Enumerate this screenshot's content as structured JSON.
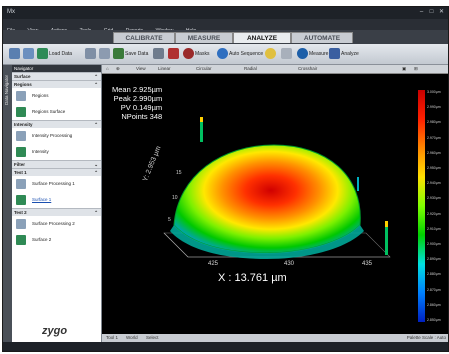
{
  "window": {
    "title": "Mx"
  },
  "menu": [
    "File",
    "View",
    "Actions",
    "Tools",
    "Grid",
    "Reports",
    "Window",
    "Help"
  ],
  "tabs": [
    {
      "label": "CALIBRATE",
      "active": false
    },
    {
      "label": "MEASURE",
      "active": false
    },
    {
      "label": "ANALYZE",
      "active": true
    },
    {
      "label": "AUTOMATE",
      "active": false
    }
  ],
  "ribbon": {
    "load_data": "Load Data",
    "save_data": "Save Data",
    "masks": "Masks",
    "auto_sequence": "Auto Sequence",
    "measure": "Measure",
    "analyze": "Analyze"
  },
  "navigator": {
    "title": "Navigator",
    "root": "Surface",
    "groups": [
      {
        "label": "Regions",
        "items": [
          "Regions",
          "Regions Surface"
        ]
      },
      {
        "label": "Intensity",
        "items": [
          "Intensity Processing",
          "Intensity"
        ]
      },
      {
        "label": "Filter",
        "items": []
      },
      {
        "label": "Test 1",
        "items": [
          "Surface Processing 1",
          "Surface 1"
        ]
      },
      {
        "label": "Test 2",
        "items": [
          "Surface Processing 2",
          "Surface 2"
        ]
      }
    ],
    "strip_label": "Data Navigator",
    "logo": "zygo"
  },
  "viewer": {
    "tool_labels": {
      "view": "View",
      "linear": "Linear",
      "circular": "Circular",
      "radial": "Radial",
      "crosshair": "Crosshair"
    },
    "stats": [
      "Mean 2.925µm",
      "Peak 2.990µm",
      "PV 0.149µm",
      "NPoints 348"
    ],
    "x_readout": "X : 13.761 µm",
    "x_ticks": [
      "425",
      "430",
      "435"
    ],
    "y_label": "Y: 2.953 µm",
    "y_ticks": [
      "15",
      "10",
      "5"
    ],
    "colorbar_ticks": [
      "3.000µm",
      "2.990µm",
      "2.980µm",
      "2.970µm",
      "2.960µm",
      "2.950µm",
      "2.940µm",
      "2.930µm",
      "2.920µm",
      "2.910µm",
      "2.900µm",
      "2.890µm",
      "2.880µm",
      "2.870µm",
      "2.860µm",
      "2.850µm"
    ],
    "status_left": [
      "Tool 1",
      "World",
      "Select"
    ],
    "status_right": "Palette Scale : Auto"
  },
  "colors": {
    "accent_tab": "#e9ecef",
    "background": "#000000"
  }
}
